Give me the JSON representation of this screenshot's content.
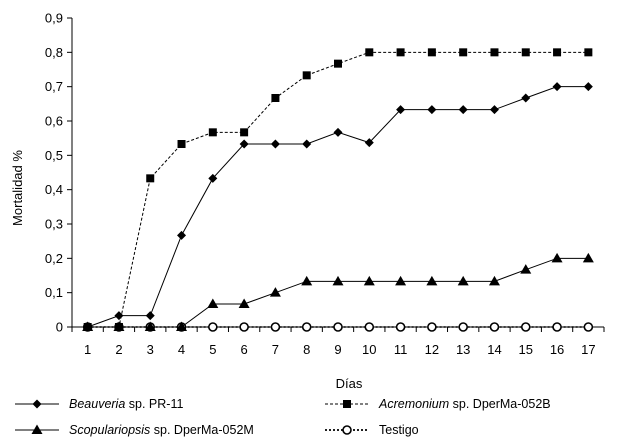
{
  "chart_data": {
    "type": "line",
    "xlabel": "Días",
    "ylabel": "Mortalidad %",
    "x": [
      1,
      2,
      3,
      4,
      5,
      6,
      7,
      8,
      9,
      10,
      11,
      12,
      13,
      14,
      15,
      16,
      17
    ],
    "ylim": [
      0,
      0.9
    ],
    "yticks": [
      "0",
      "0,1",
      "0,2",
      "0,3",
      "0,4",
      "0,5",
      "0,6",
      "0,7",
      "0,8",
      "0,9"
    ],
    "grid": false,
    "legend_position": "bottom",
    "series": [
      {
        "name_italic": "Beauveria",
        "name_rest": " sp. PR-11",
        "marker": "diamond",
        "line": "solid",
        "color": "#000000",
        "values": [
          0,
          0.033,
          0.033,
          0.267,
          0.433,
          0.533,
          0.533,
          0.533,
          0.567,
          0.537,
          0.633,
          0.633,
          0.633,
          0.633,
          0.667,
          0.7,
          0.7
        ]
      },
      {
        "name_italic": "Acremonium",
        "name_rest": " sp.  DperMa-052B",
        "marker": "square",
        "line": "dashed",
        "color": "#000000",
        "values": [
          0,
          0,
          0.433,
          0.533,
          0.567,
          0.567,
          0.667,
          0.733,
          0.767,
          0.8,
          0.8,
          0.8,
          0.8,
          0.8,
          0.8,
          0.8,
          0.8
        ]
      },
      {
        "name_italic": "Scopulariopsis",
        "name_rest": " sp.  DperMa-052M",
        "marker": "triangle",
        "line": "solid",
        "color": "#000000",
        "values": [
          0,
          0,
          0,
          0,
          0.067,
          0.067,
          0.1,
          0.133,
          0.133,
          0.133,
          0.133,
          0.133,
          0.133,
          0.133,
          0.167,
          0.2,
          0.2
        ]
      },
      {
        "name_italic": "",
        "name_rest": "Testigo",
        "marker": "circle",
        "line": "dotted",
        "color": "#000000",
        "values": [
          0,
          0,
          0,
          0,
          0,
          0,
          0,
          0,
          0,
          0,
          0,
          0,
          0,
          0,
          0,
          0,
          0
        ]
      }
    ]
  }
}
